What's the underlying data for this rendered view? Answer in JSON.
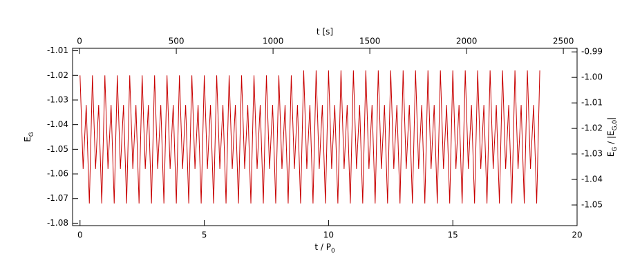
{
  "chart_data": {
    "type": "line",
    "xlabel": [
      {
        "text": "t / P"
      },
      {
        "text": "0",
        "sub": true
      }
    ],
    "x2label": [
      {
        "text": "t [s]"
      }
    ],
    "ylabel": [
      {
        "text": "E"
      },
      {
        "text": "G",
        "sub": true
      }
    ],
    "y2label": [
      {
        "text": "E"
      },
      {
        "text": "G",
        "sub": true
      },
      {
        "text": " / |E"
      },
      {
        "text": "G,0",
        "sub": true
      },
      {
        "text": "|"
      }
    ],
    "xlim": [
      -0.3,
      20
    ],
    "xticks": [
      0,
      5,
      10,
      15,
      20
    ],
    "x2lim": [
      -36,
      2571
    ],
    "x2ticks": [
      0,
      500,
      1000,
      1500,
      2000,
      2500
    ],
    "ylim": [
      -1.081,
      -1.009
    ],
    "yticks": [
      -1.08,
      -1.07,
      -1.06,
      -1.05,
      -1.04,
      -1.03,
      -1.02,
      -1.01
    ],
    "y2lim": [
      -1.0581,
      -0.9886
    ],
    "y2ticks": [
      -1.05,
      -1.04,
      -1.03,
      -1.02,
      -1.01,
      {
        "value": -1,
        "label": "-1.00"
      },
      -0.99
    ],
    "series": [
      {
        "color": "#c80000",
        "x": [
          0,
          0.125,
          0.25,
          0.375,
          0.5,
          0.625,
          0.75,
          0.875,
          1,
          1.125,
          1.25,
          1.375,
          1.5,
          1.625,
          1.75,
          1.875,
          2,
          2.125,
          2.25,
          2.375,
          2.5,
          2.625,
          2.75,
          2.875,
          3,
          3.125,
          3.25,
          3.375,
          3.5,
          3.625,
          3.75,
          3.875,
          4,
          4.125,
          4.25,
          4.375,
          4.5,
          4.625,
          4.75,
          4.875,
          5,
          5.125,
          5.25,
          5.375,
          5.5,
          5.625,
          5.75,
          5.875,
          6,
          6.125,
          6.25,
          6.375,
          6.5,
          6.625,
          6.75,
          6.875,
          7,
          7.125,
          7.25,
          7.375,
          7.5,
          7.625,
          7.75,
          7.875,
          8,
          8.125,
          8.25,
          8.375,
          8.5,
          8.625,
          8.75,
          8.875,
          9,
          9.125,
          9.25,
          9.375,
          9.5,
          9.625,
          9.75,
          9.875,
          10,
          10.125,
          10.25,
          10.375,
          10.5,
          10.625,
          10.75,
          10.875,
          11,
          11.125,
          11.25,
          11.375,
          11.5,
          11.625,
          11.75,
          11.875,
          12,
          12.125,
          12.25,
          12.375,
          12.5,
          12.625,
          12.75,
          12.875,
          13,
          13.125,
          13.25,
          13.375,
          13.5,
          13.625,
          13.75,
          13.875,
          14,
          14.125,
          14.25,
          14.375,
          14.5,
          14.625,
          14.75,
          14.875,
          15,
          15.125,
          15.25,
          15.375,
          15.5,
          15.625,
          15.75,
          15.875,
          16,
          16.125,
          16.25,
          16.375,
          16.5,
          16.625,
          16.75,
          16.875,
          17,
          17.125,
          17.25,
          17.375,
          17.5,
          17.625,
          17.75,
          17.875,
          18,
          18.125,
          18.25,
          18.375,
          18.5
        ],
        "values": [
          -1.02,
          -1.058,
          -1.032,
          -1.072,
          -1.02,
          -1.058,
          -1.032,
          -1.072,
          -1.02,
          -1.058,
          -1.032,
          -1.072,
          -1.02,
          -1.058,
          -1.032,
          -1.072,
          -1.02,
          -1.058,
          -1.032,
          -1.072,
          -1.02,
          -1.058,
          -1.032,
          -1.072,
          -1.02,
          -1.058,
          -1.032,
          -1.072,
          -1.02,
          -1.058,
          -1.032,
          -1.072,
          -1.02,
          -1.058,
          -1.032,
          -1.072,
          -1.02,
          -1.058,
          -1.032,
          -1.072,
          -1.02,
          -1.058,
          -1.032,
          -1.072,
          -1.02,
          -1.058,
          -1.032,
          -1.072,
          -1.02,
          -1.058,
          -1.032,
          -1.072,
          -1.02,
          -1.058,
          -1.032,
          -1.072,
          -1.02,
          -1.058,
          -1.032,
          -1.072,
          -1.02,
          -1.058,
          -1.032,
          -1.072,
          -1.02,
          -1.058,
          -1.032,
          -1.072,
          -1.02,
          -1.058,
          -1.032,
          -1.072,
          -1.018,
          -1.058,
          -1.032,
          -1.072,
          -1.018,
          -1.058,
          -1.032,
          -1.072,
          -1.018,
          -1.058,
          -1.032,
          -1.072,
          -1.018,
          -1.058,
          -1.032,
          -1.072,
          -1.018,
          -1.058,
          -1.032,
          -1.072,
          -1.018,
          -1.058,
          -1.032,
          -1.072,
          -1.018,
          -1.058,
          -1.032,
          -1.072,
          -1.018,
          -1.058,
          -1.032,
          -1.072,
          -1.018,
          -1.058,
          -1.032,
          -1.072,
          -1.018,
          -1.058,
          -1.032,
          -1.072,
          -1.018,
          -1.058,
          -1.032,
          -1.072,
          -1.018,
          -1.058,
          -1.032,
          -1.072,
          -1.018,
          -1.058,
          -1.032,
          -1.072,
          -1.018,
          -1.058,
          -1.032,
          -1.072,
          -1.018,
          -1.058,
          -1.032,
          -1.072,
          -1.018,
          -1.058,
          -1.032,
          -1.072,
          -1.018,
          -1.058,
          -1.032,
          -1.072,
          -1.018,
          -1.058,
          -1.032,
          -1.072,
          -1.018,
          -1.058,
          -1.032,
          -1.072,
          -1.018
        ]
      }
    ]
  }
}
